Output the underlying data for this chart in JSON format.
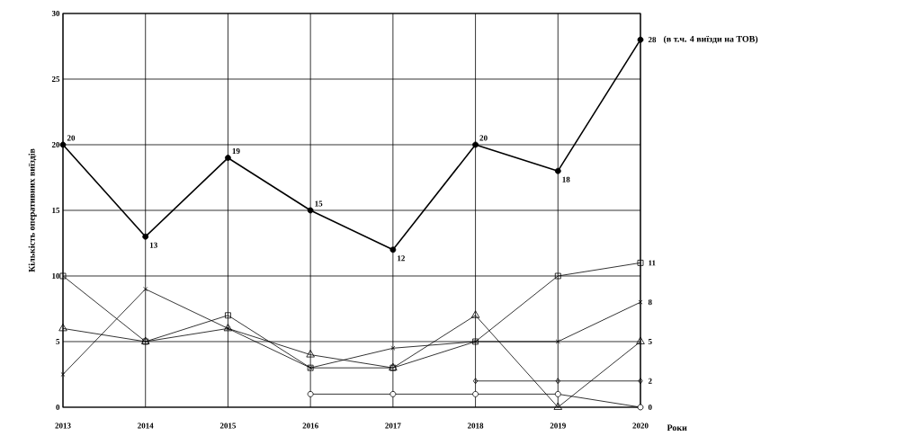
{
  "chart_data": {
    "type": "line",
    "xlabel": "Роки",
    "ylabel": "Кількість оперативних виїздів",
    "categories": [
      "2013",
      "2014",
      "2015",
      "2016",
      "2017",
      "2018",
      "2019",
      "2020"
    ],
    "ylim": [
      0,
      30
    ],
    "yticks": [
      0,
      5,
      10,
      15,
      20,
      25,
      30
    ],
    "grid": true,
    "series": [
      {
        "color": "#000000",
        "marker": "circle",
        "values": [
          20,
          13,
          19,
          15,
          12,
          20,
          18,
          28
        ],
        "value_labels": [
          "20",
          "13",
          "19",
          "15",
          "12",
          "20",
          "18",
          "28"
        ]
      },
      {
        "color": "#000000",
        "marker": "square",
        "values": [
          10,
          5,
          7,
          3,
          3,
          5,
          10,
          11
        ],
        "value_labels": [
          null,
          null,
          null,
          null,
          null,
          null,
          null,
          "11"
        ]
      },
      {
        "color": "#000000",
        "marker": "cross",
        "values": [
          2.5,
          9,
          6,
          3,
          4.5,
          5,
          5,
          8
        ],
        "value_labels": [
          null,
          null,
          null,
          null,
          null,
          null,
          null,
          "8"
        ]
      },
      {
        "color": "#000000",
        "marker": "triangle",
        "values": [
          6,
          5,
          6,
          4,
          3,
          7,
          0,
          5
        ],
        "value_labels": [
          null,
          null,
          null,
          null,
          null,
          null,
          null,
          "5"
        ]
      },
      {
        "color": "#000000",
        "marker": "diamond",
        "values": [
          null,
          null,
          null,
          null,
          null,
          2,
          2,
          2
        ],
        "value_labels": [
          null,
          null,
          null,
          null,
          null,
          null,
          null,
          "2"
        ]
      },
      {
        "color": "#000000",
        "marker": "circle",
        "values": [
          null,
          null,
          null,
          1,
          1,
          1,
          1,
          0
        ],
        "value_labels": [
          null,
          null,
          null,
          null,
          null,
          null,
          null,
          "0"
        ]
      }
    ],
    "annotations": [
      {
        "text": "(в т.ч. 4 виїзди на ТОВ)",
        "x": "2020",
        "y": 28
      }
    ]
  }
}
